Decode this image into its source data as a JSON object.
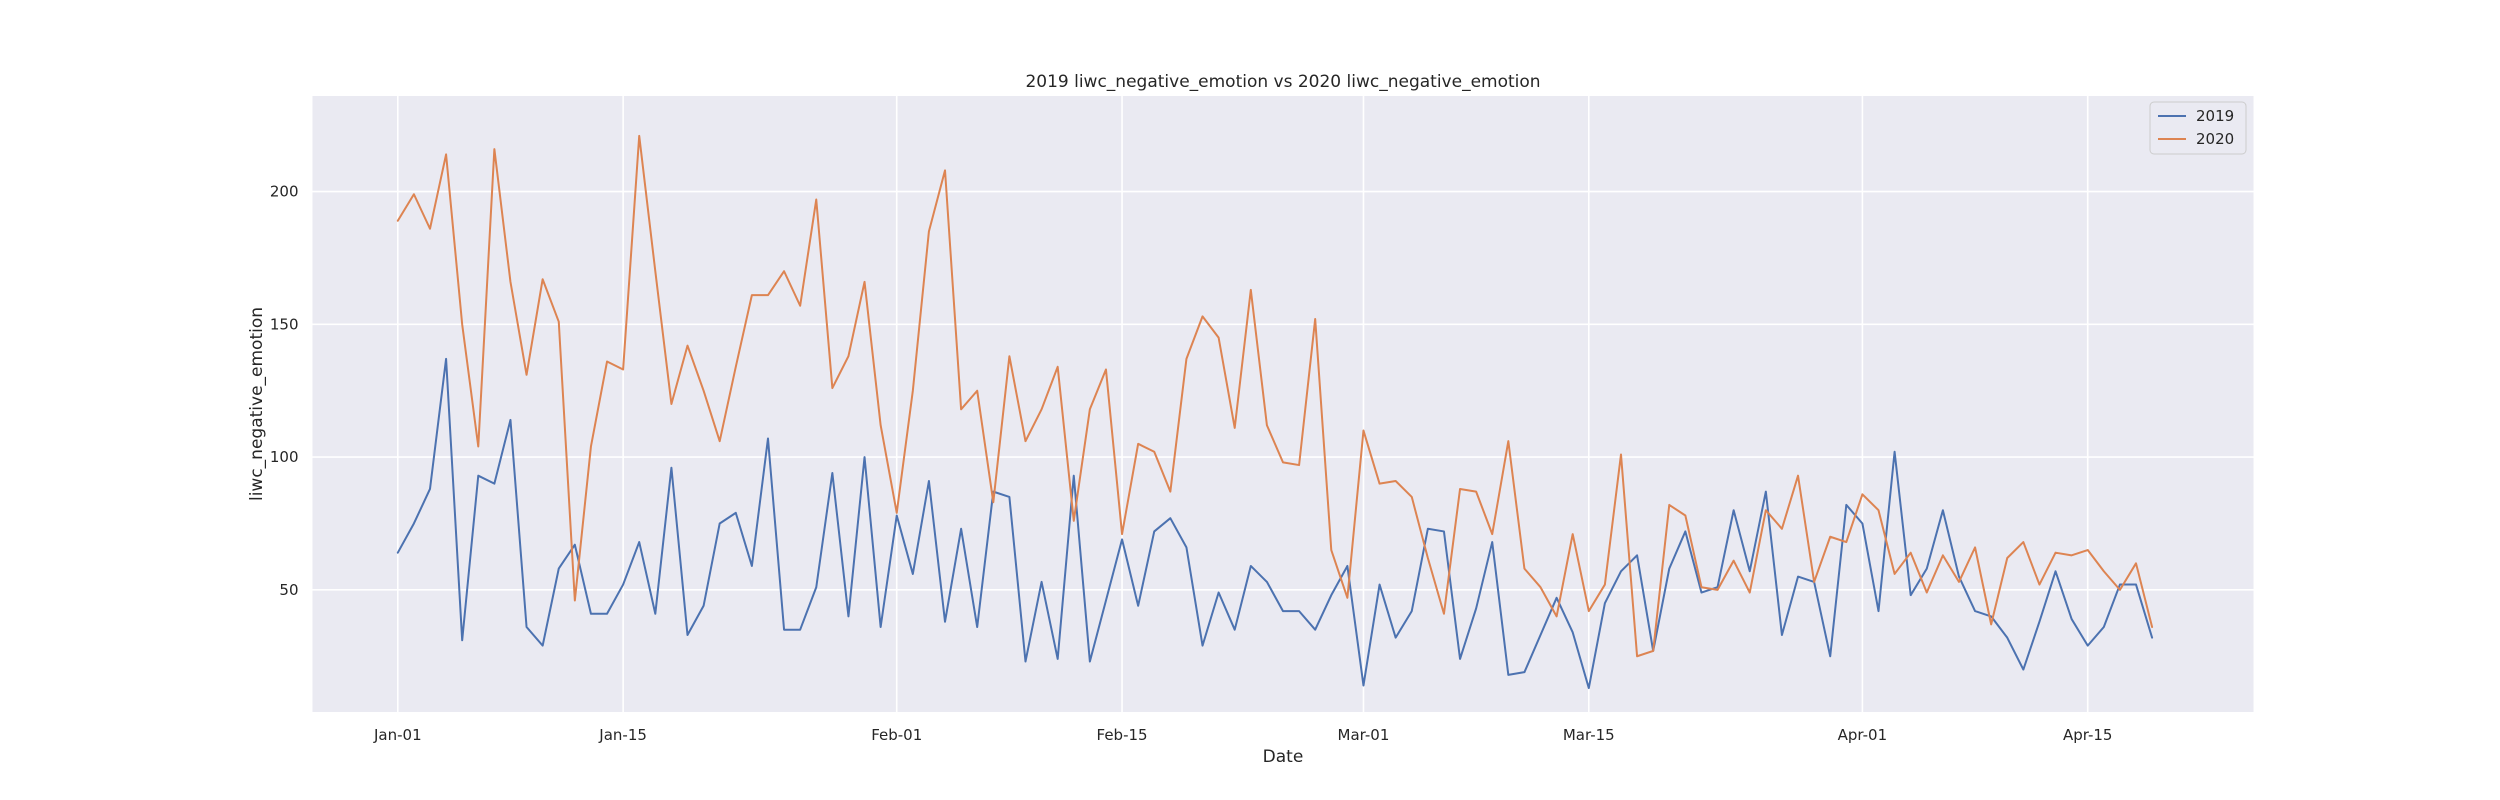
{
  "chart_data": {
    "type": "line",
    "title": "2019 liwc_negative_emotion vs 2020 liwc_negative_emotion",
    "xlabel": "Date",
    "ylabel": "liwc_negative_emotion",
    "x_start": "2020-01-01",
    "x_ticks": [
      {
        "label": "Jan-01",
        "day": 0
      },
      {
        "label": "Jan-15",
        "day": 14
      },
      {
        "label": "Feb-01",
        "day": 31
      },
      {
        "label": "Feb-15",
        "day": 45
      },
      {
        "label": "Mar-01",
        "day": 60
      },
      {
        "label": "Mar-15",
        "day": 74
      },
      {
        "label": "Apr-01",
        "day": 91
      },
      {
        "label": "Apr-15",
        "day": 105
      }
    ],
    "y_ticks": [
      50,
      100,
      150,
      200
    ],
    "xlim": [
      -5.3,
      115.3
    ],
    "ylim": [
      4,
      236
    ],
    "grid": true,
    "legend_position": "top-right",
    "series": [
      {
        "name": "2019",
        "color": "#4c72b0",
        "values": [
          64,
          75,
          88,
          137,
          31,
          93,
          90,
          114,
          36,
          29,
          58,
          67,
          41,
          41,
          52,
          68,
          41,
          96,
          33,
          44,
          75,
          79,
          59,
          107,
          35,
          35,
          51,
          94,
          40,
          100,
          36,
          78,
          56,
          91,
          38,
          73,
          36,
          87,
          85,
          23,
          53,
          24,
          93,
          23,
          46,
          69,
          44,
          72,
          77,
          66,
          29,
          49,
          35,
          59,
          53,
          42,
          42,
          35,
          48,
          59,
          14,
          52,
          32,
          42,
          73,
          72,
          24,
          43,
          68,
          18,
          19,
          33,
          47,
          34,
          13,
          45,
          57,
          63,
          27,
          58,
          72,
          49,
          51,
          80,
          57,
          87,
          33,
          55,
          53,
          25,
          82,
          75,
          42,
          102,
          48,
          58,
          80,
          55,
          42,
          40,
          32,
          20,
          38,
          57,
          39,
          29,
          36,
          52,
          52,
          32
        ]
      },
      {
        "name": "2020",
        "color": "#dd8452",
        "values": [
          189,
          199,
          186,
          214,
          150,
          104,
          216,
          166,
          131,
          167,
          151,
          46,
          104,
          136,
          133,
          221,
          170,
          120,
          142,
          125,
          106,
          134,
          161,
          161,
          170,
          157,
          197,
          126,
          138,
          166,
          112,
          79,
          125,
          185,
          208,
          118,
          125,
          83,
          138,
          106,
          118,
          134,
          76,
          118,
          133,
          71,
          105,
          102,
          87,
          137,
          153,
          145,
          111,
          163,
          112,
          98,
          97,
          152,
          65,
          47,
          110,
          90,
          91,
          85,
          62,
          41,
          88,
          87,
          71,
          106,
          58,
          51,
          40,
          71,
          42,
          52,
          101,
          25,
          27,
          82,
          78,
          51,
          50,
          61,
          49,
          80,
          73,
          93,
          53,
          70,
          68,
          86,
          80,
          56,
          64,
          49,
          63,
          53,
          66,
          37,
          62,
          68,
          52,
          64,
          63,
          65,
          57,
          50,
          60,
          36
        ]
      }
    ]
  }
}
